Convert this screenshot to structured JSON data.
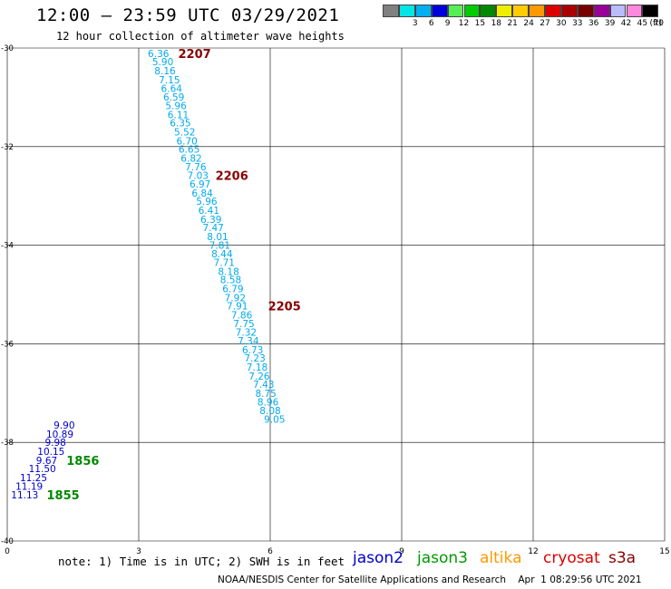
{
  "header": {
    "title": "12:00 – 23:59 UTC 03/29/2021",
    "subtitle": "12 hour collection of altimeter wave heights"
  },
  "colorbar": {
    "unit": "(ft)",
    "bins": [
      {
        "color": "#808080",
        "label": ""
      },
      {
        "color": "#00e5e5",
        "label": "3"
      },
      {
        "color": "#00b0f0",
        "label": "6"
      },
      {
        "color": "#0000dd",
        "label": "9"
      },
      {
        "color": "#55ee55",
        "label": "12"
      },
      {
        "color": "#00cc00",
        "label": "15"
      },
      {
        "color": "#008800",
        "label": "18"
      },
      {
        "color": "#eeee00",
        "label": "21"
      },
      {
        "color": "#ffcc00",
        "label": "24"
      },
      {
        "color": "#ff9900",
        "label": "27"
      },
      {
        "color": "#dd0000",
        "label": "30"
      },
      {
        "color": "#aa0000",
        "label": "33"
      },
      {
        "color": "#770000",
        "label": "36"
      },
      {
        "color": "#990099",
        "label": "39"
      },
      {
        "color": "#bbbbff",
        "label": "42"
      },
      {
        "color": "#ff88dd",
        "label": "45"
      },
      {
        "color": "#000000",
        "label": "70"
      }
    ]
  },
  "chart_data": {
    "type": "scatter",
    "xlim": [
      0,
      15
    ],
    "ylim": [
      -40,
      -30
    ],
    "xticks": [
      "0",
      "3",
      "6",
      "9",
      "12",
      "15"
    ],
    "yticks": [
      "-30",
      "-32",
      "-34",
      "-36",
      "-38",
      "-40"
    ],
    "grid": true,
    "series": [
      {
        "name": "jason2",
        "color": "#0000cc",
        "points": [
          {
            "x": 1.3,
            "y": -37.65,
            "label": "9.90"
          },
          {
            "x": 1.2,
            "y": -37.83,
            "label": "10.89"
          },
          {
            "x": 1.1,
            "y": -38.0,
            "label": "9.98"
          },
          {
            "x": 1.0,
            "y": -38.18,
            "label": "10.15"
          },
          {
            "x": 0.9,
            "y": -38.36,
            "label": "9.67"
          },
          {
            "x": 0.8,
            "y": -38.53,
            "label": "11.50"
          },
          {
            "x": 0.6,
            "y": -38.71,
            "label": "11.25"
          },
          {
            "x": 0.5,
            "y": -38.89,
            "label": "11.19"
          },
          {
            "x": 0.4,
            "y": -39.06,
            "label": "11.13"
          }
        ]
      },
      {
        "name": "jason3",
        "color": "#00aaee",
        "points": [
          {
            "x": 3.45,
            "y": -30.11,
            "label": "6.36"
          },
          {
            "x": 3.55,
            "y": -30.28,
            "label": "5.90"
          },
          {
            "x": 3.6,
            "y": -30.46,
            "label": "8.16"
          },
          {
            "x": 3.7,
            "y": -30.64,
            "label": "7.15"
          },
          {
            "x": 3.75,
            "y": -30.82,
            "label": "6.64"
          },
          {
            "x": 3.8,
            "y": -30.99,
            "label": "6.59"
          },
          {
            "x": 3.85,
            "y": -31.17,
            "label": "5.96"
          },
          {
            "x": 3.9,
            "y": -31.35,
            "label": "6.11"
          },
          {
            "x": 3.95,
            "y": -31.52,
            "label": "6.35"
          },
          {
            "x": 4.05,
            "y": -31.7,
            "label": "5.52"
          },
          {
            "x": 4.1,
            "y": -31.88,
            "label": "6.70"
          },
          {
            "x": 4.15,
            "y": -32.05,
            "label": "6.65"
          },
          {
            "x": 4.2,
            "y": -32.23,
            "label": "6.82"
          },
          {
            "x": 4.3,
            "y": -32.41,
            "label": "7.76"
          },
          {
            "x": 4.35,
            "y": -32.58,
            "label": "7.03"
          },
          {
            "x": 4.4,
            "y": -32.76,
            "label": "6.97"
          },
          {
            "x": 4.45,
            "y": -32.94,
            "label": "6.84"
          },
          {
            "x": 4.55,
            "y": -33.11,
            "label": "5.96"
          },
          {
            "x": 4.6,
            "y": -33.29,
            "label": "6.41"
          },
          {
            "x": 4.65,
            "y": -33.47,
            "label": "6.39"
          },
          {
            "x": 4.7,
            "y": -33.64,
            "label": "7.47"
          },
          {
            "x": 4.8,
            "y": -33.82,
            "label": "8.01"
          },
          {
            "x": 4.85,
            "y": -34.0,
            "label": "7.81"
          },
          {
            "x": 4.9,
            "y": -34.17,
            "label": "8.44"
          },
          {
            "x": 4.95,
            "y": -34.35,
            "label": "7.71"
          },
          {
            "x": 5.05,
            "y": -34.53,
            "label": "8.18"
          },
          {
            "x": 5.1,
            "y": -34.7,
            "label": "8.58"
          },
          {
            "x": 5.15,
            "y": -34.88,
            "label": "6.79"
          },
          {
            "x": 5.2,
            "y": -35.06,
            "label": "7.92"
          },
          {
            "x": 5.25,
            "y": -35.23,
            "label": "7.91"
          },
          {
            "x": 5.35,
            "y": -35.41,
            "label": "7.86"
          },
          {
            "x": 5.4,
            "y": -35.59,
            "label": "7.75"
          },
          {
            "x": 5.45,
            "y": -35.76,
            "label": "7.32"
          },
          {
            "x": 5.5,
            "y": -35.94,
            "label": "7.34"
          },
          {
            "x": 5.6,
            "y": -36.12,
            "label": "6.73"
          },
          {
            "x": 5.65,
            "y": -36.29,
            "label": "7.23"
          },
          {
            "x": 5.7,
            "y": -36.47,
            "label": "7.18"
          },
          {
            "x": 5.75,
            "y": -36.65,
            "label": "7.26"
          },
          {
            "x": 5.85,
            "y": -36.82,
            "label": "7.43"
          },
          {
            "x": 5.9,
            "y": -37.0,
            "label": "8.75"
          },
          {
            "x": 5.95,
            "y": -37.18,
            "label": "8.96"
          },
          {
            "x": 6.0,
            "y": -37.35,
            "label": "8.08"
          },
          {
            "x": 6.1,
            "y": -37.53,
            "label": "9.05"
          }
        ]
      }
    ],
    "time_labels": [
      {
        "x": 3.9,
        "y": -30.11,
        "label": "2207",
        "color": "#880000"
      },
      {
        "x": 4.75,
        "y": -32.58,
        "label": "2206",
        "color": "#880000"
      },
      {
        "x": 5.95,
        "y": -35.23,
        "label": "2205",
        "color": "#880000"
      },
      {
        "x": 1.35,
        "y": -38.36,
        "label": "1856",
        "color": "#008800"
      },
      {
        "x": 0.9,
        "y": -39.06,
        "label": "1855",
        "color": "#008800"
      }
    ]
  },
  "footnote": {
    "note": "note: 1) Time is in UTC; 2) SWH is in feet",
    "satellites": [
      {
        "name": "jason2",
        "color": "#0000cc"
      },
      {
        "name": "jason3",
        "color": "#009900"
      },
      {
        "name": "altika",
        "color": "#ff9900"
      },
      {
        "name": "cryosat",
        "color": "#dd0000"
      },
      {
        "name": "s3a",
        "color": "#880000"
      }
    ],
    "credit": "NOAA/NESDIS Center for Satellite Applications and Research    Apr  1 08:29:56 UTC 2021"
  }
}
